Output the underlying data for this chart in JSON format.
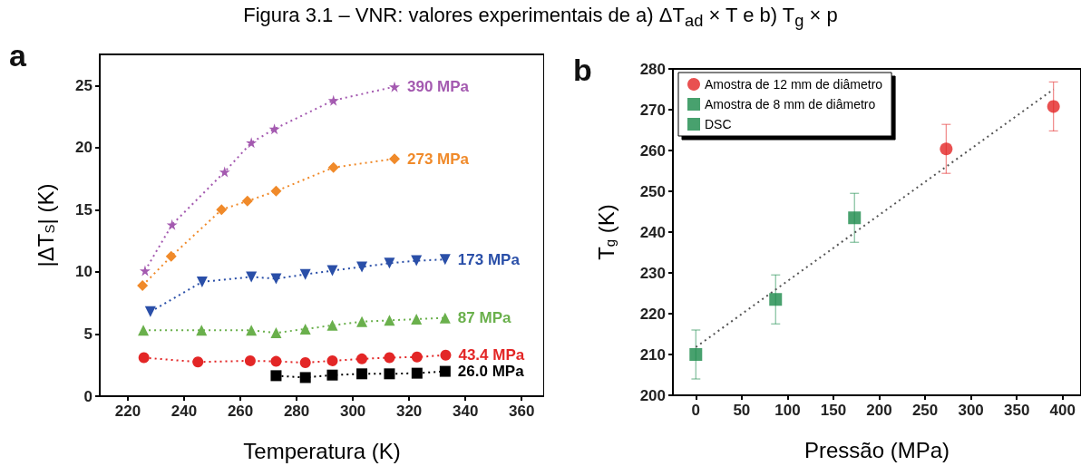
{
  "chart_data": [
    {
      "type": "line",
      "title": "Figura 3.1 – VNR: valores experimentais de a) ΔT$_{ad}$ × T e b) T$_{g}$ × p",
      "xlabel": "Temperatura (K)",
      "ylabel": "|ΔT$_{S}$| (K)",
      "annotations": [
        "a"
      ],
      "xlim": [
        210,
        368
      ],
      "xticks": [
        220,
        240,
        260,
        280,
        300,
        320,
        340,
        360
      ],
      "ylim": [
        0,
        27.5
      ],
      "yticks": [
        0,
        5,
        10,
        15,
        20,
        25
      ],
      "grid": false,
      "legend": false,
      "line_style": "dotted",
      "series": [
        {
          "name": "390 MPa",
          "color": "#a45ab0",
          "marker": "star",
          "x": [
            226.1,
            235.7,
            254.4,
            263.9,
            272.1,
            293.1,
            314.8
          ],
          "values": [
            10.1,
            13.8,
            18.05,
            20.4,
            21.5,
            23.8,
            24.9
          ]
        },
        {
          "name": "273 MPa",
          "color": "#f08a2a",
          "marker": "diamond",
          "x": [
            225.2,
            235.4,
            253.3,
            262.5,
            272.7,
            293.1,
            314.8
          ],
          "values": [
            8.9,
            11.25,
            15.0,
            15.7,
            16.5,
            18.4,
            19.1
          ]
        },
        {
          "name": "173 MPa",
          "color": "#2a4fa8",
          "marker": "triangle-down",
          "x": [
            228,
            246.4,
            263.9,
            272.7,
            283.1,
            292.7,
            303.2,
            313,
            322.6,
            332.8
          ],
          "values": [
            6.8,
            9.2,
            9.6,
            9.45,
            9.8,
            10.1,
            10.4,
            10.7,
            10.9,
            11.0
          ]
        },
        {
          "name": "87 MPa",
          "color": "#6ab04c",
          "marker": "triangle",
          "x": [
            225.5,
            246.2,
            263.9,
            272.7,
            283.1,
            292.7,
            303.2,
            313,
            322.6,
            332.8
          ],
          "values": [
            5.3,
            5.3,
            5.3,
            5.1,
            5.4,
            5.7,
            6.0,
            6.1,
            6.2,
            6.3
          ]
        },
        {
          "name": "43.4 MPa",
          "color": "#e32626",
          "marker": "circle",
          "x": [
            225.7,
            244.9,
            263.5,
            272.7,
            283.1,
            292.7,
            303.2,
            313,
            322.8,
            333
          ],
          "values": [
            3.1,
            2.75,
            2.85,
            2.8,
            2.7,
            2.85,
            3.0,
            3.1,
            3.15,
            3.3
          ]
        },
        {
          "name": "26.0 MPa",
          "color": "#000000",
          "marker": "square",
          "x": [
            272.7,
            283.1,
            292.7,
            303.2,
            313,
            322.8,
            332.8
          ],
          "values": [
            1.65,
            1.5,
            1.7,
            1.8,
            1.8,
            1.85,
            2.0
          ]
        }
      ]
    },
    {
      "type": "scatter",
      "xlabel": "Pressão (MPa)",
      "ylabel": "T$_{g}$ (K)",
      "annotations": [
        "b"
      ],
      "xlim": [
        -25,
        420
      ],
      "xticks": [
        0,
        50,
        100,
        150,
        200,
        250,
        300,
        350,
        400
      ],
      "ylim": [
        200,
        280
      ],
      "yticks": [
        200,
        210,
        220,
        230,
        240,
        250,
        260,
        270,
        280
      ],
      "grid": false,
      "legend": "top left",
      "series": [
        {
          "name": "Amostra de 12 mm de diâmetro",
          "color": "#e32626",
          "marker": "circle",
          "x": [
            273,
            390
          ],
          "values": [
            260.4,
            270.8
          ],
          "errors": [
            6,
            6
          ]
        },
        {
          "name": "Amostra de 8 mm de diâmetro",
          "color": "#1a8a4a",
          "marker": "square",
          "x": [
            87,
            173
          ],
          "values": [
            223.5,
            243.5
          ],
          "errors": [
            6,
            6
          ]
        },
        {
          "name": "DSC",
          "color": "#1a8a4a",
          "marker": "square",
          "x": [
            0
          ],
          "values": [
            210
          ],
          "errors": [
            6
          ]
        },
        {
          "type": "line",
          "color": "#555555",
          "marker": "none",
          "line_style": "dotted",
          "x": [
            0,
            390
          ],
          "values": [
            211.8,
            275.0
          ]
        }
      ]
    }
  ]
}
